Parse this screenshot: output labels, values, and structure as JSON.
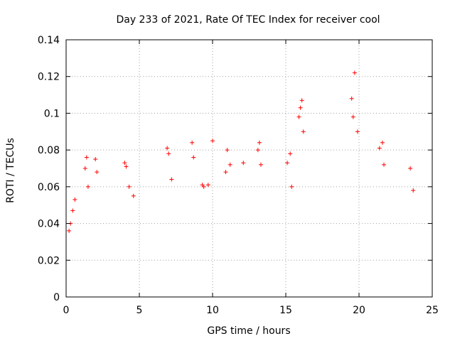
{
  "chart_data": {
    "type": "scatter",
    "title": "Day 233 of 2021, Rate Of TEC Index for receiver cool",
    "xlabel": "GPS time / hours",
    "ylabel": "ROTI / TECUs",
    "xlim": [
      0,
      25
    ],
    "ylim": [
      0,
      0.14
    ],
    "xticks": [
      0,
      5,
      10,
      15,
      20,
      25
    ],
    "xtick_labels": [
      "0",
      "5",
      "10",
      "15",
      "20",
      "25"
    ],
    "yticks": [
      0,
      0.02,
      0.04,
      0.06,
      0.08,
      0.1,
      0.12,
      0.14
    ],
    "ytick_labels": [
      "0",
      "0.02",
      "0.04",
      "0.06",
      "0.08",
      "0.1",
      "0.12",
      "0.14"
    ],
    "grid": true,
    "marker": "+",
    "color": "#ff0000",
    "series": [
      {
        "x": [
          0.2,
          0.3,
          0.45,
          0.6,
          1.3,
          1.4,
          1.5,
          2.0,
          2.1,
          4.0,
          4.1,
          4.3,
          4.6,
          6.9,
          7.0,
          7.2,
          8.6,
          8.7,
          9.3,
          9.4,
          9.7,
          10.0,
          10.9,
          11.0,
          11.2,
          12.1,
          13.1,
          13.2,
          13.3,
          15.1,
          15.3,
          15.4,
          15.9,
          16.0,
          16.1,
          16.2,
          19.5,
          19.6,
          19.7,
          19.9,
          21.4,
          21.6,
          21.7,
          23.5,
          23.7
        ],
        "y": [
          0.036,
          0.04,
          0.047,
          0.053,
          0.07,
          0.076,
          0.06,
          0.075,
          0.068,
          0.073,
          0.071,
          0.06,
          0.055,
          0.081,
          0.078,
          0.064,
          0.084,
          0.076,
          0.061,
          0.06,
          0.061,
          0.085,
          0.068,
          0.08,
          0.072,
          0.073,
          0.08,
          0.084,
          0.072,
          0.073,
          0.078,
          0.06,
          0.098,
          0.103,
          0.107,
          0.09,
          0.108,
          0.098,
          0.122,
          0.09,
          0.081,
          0.084,
          0.072,
          0.07,
          0.058
        ]
      }
    ]
  }
}
